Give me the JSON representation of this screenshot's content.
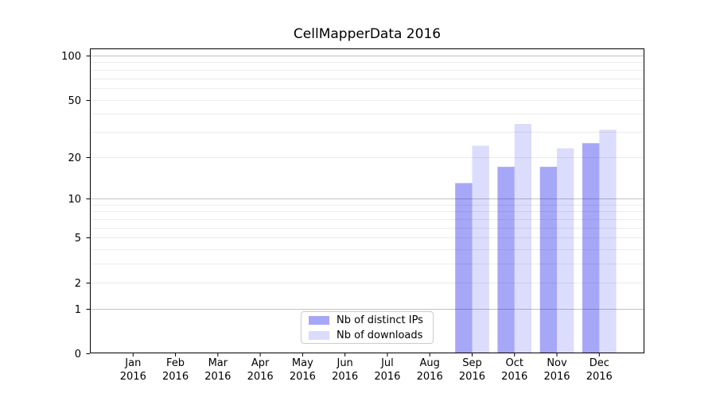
{
  "figure": {
    "background": "#ffffff",
    "text_color": "#000000",
    "spine_color": "#000000",
    "major_grid_color": "#c2c2c2",
    "minor_grid_color": "#ebebeb"
  },
  "chart_data": {
    "type": "bar",
    "title": "CellMapperData 2016",
    "categories": [
      "Jan 2016",
      "Feb 2016",
      "Mar 2016",
      "Apr 2016",
      "May 2016",
      "Jun 2016",
      "Jul 2016",
      "Aug 2016",
      "Sep 2016",
      "Oct 2016",
      "Nov 2016",
      "Dec 2016"
    ],
    "category_months": [
      "Jan",
      "Feb",
      "Mar",
      "Apr",
      "May",
      "Jun",
      "Jul",
      "Aug",
      "Sep",
      "Oct",
      "Nov",
      "Dec"
    ],
    "category_year": "2016",
    "series": [
      {
        "name": "Nb of distinct IPs",
        "color": "#1111ec",
        "alpha": 0.37,
        "color_on_white": "#a7a7f7",
        "values": [
          0,
          0,
          0,
          0,
          0,
          0,
          0,
          0,
          13,
          17,
          17,
          25
        ]
      },
      {
        "name": "Nb of downloads",
        "color": "#1111ec",
        "alpha": 0.15,
        "color_on_white": "#dbdbfb",
        "values": [
          0,
          0,
          0,
          0,
          0,
          0,
          0,
          0,
          24,
          34,
          23,
          31
        ]
      }
    ],
    "xlabel": "",
    "ylabel": "",
    "yscale": "log1p",
    "ylim": [
      0,
      112
    ],
    "yticks": [
      0,
      1,
      2,
      5,
      10,
      20,
      50,
      100
    ],
    "major_gridlines": [
      1,
      10,
      100
    ],
    "minor_gridlines": [
      2,
      3,
      4,
      5,
      6,
      7,
      8,
      9,
      20,
      30,
      40,
      50,
      60,
      70,
      80,
      90
    ],
    "grid": true,
    "legend_position": "lower center",
    "legend_entries": [
      "Nb of distinct IPs",
      "Nb of downloads"
    ]
  }
}
